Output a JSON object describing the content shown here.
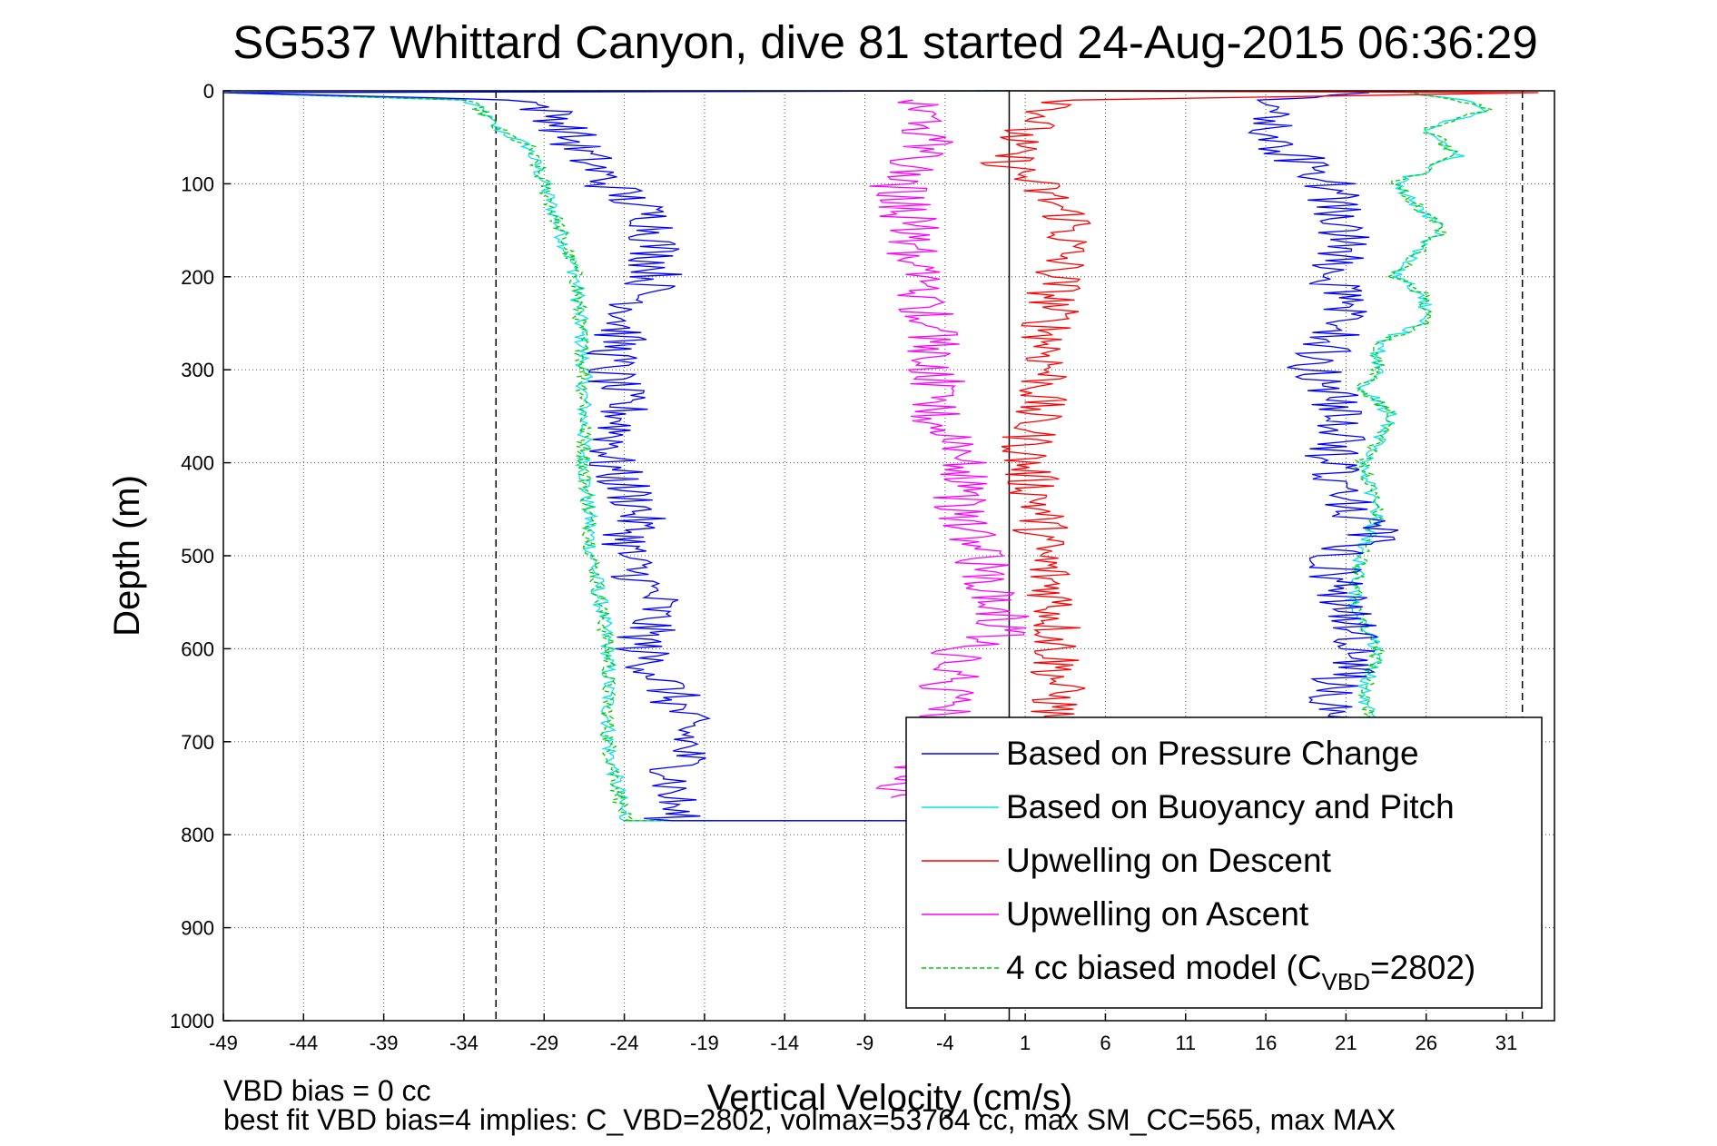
{
  "chart_data": {
    "type": "line",
    "title": "SG537 Whittard Canyon, dive 81 started 24-Aug-2015 06:36:29",
    "xlabel": "Vertical Velocity (cm/s)",
    "ylabel": "Depth (m)",
    "xlim": [
      -49,
      34
    ],
    "ylim": [
      0,
      1000
    ],
    "y_reversed": true,
    "grid": true,
    "x_ticks": [
      -49,
      -44,
      -39,
      -34,
      -29,
      -24,
      -19,
      -14,
      -9,
      -4,
      1,
      6,
      11,
      16,
      21,
      26,
      31
    ],
    "y_ticks": [
      0,
      100,
      200,
      300,
      400,
      500,
      600,
      700,
      800,
      900,
      1000
    ],
    "reference_lines": [
      {
        "axis": "x",
        "value": -32,
        "style": "dashed"
      },
      {
        "axis": "x",
        "value": 0,
        "style": "solid"
      },
      {
        "axis": "x",
        "value": 32,
        "style": "dashed"
      }
    ],
    "legend_position": "bottom-right",
    "series": [
      {
        "name": "Based on Pressure Change",
        "color": "#0000ff",
        "depth": [
          0,
          2,
          10,
          30,
          60,
          100,
          140,
          200,
          250,
          300,
          350,
          400,
          450,
          500,
          550,
          600,
          650,
          700,
          750,
          785,
          785,
          775,
          700,
          650,
          600,
          550,
          500,
          480,
          450,
          400,
          350,
          300,
          250,
          200,
          150,
          100,
          60,
          30,
          10,
          2,
          0
        ],
        "velocity": [
          0,
          -49,
          -30,
          -28,
          -27,
          -25,
          -22,
          -22,
          -24,
          -25,
          -24,
          -25,
          -23,
          -24,
          -22,
          -23,
          -21,
          -20,
          -21,
          -21,
          -5,
          -4,
          21,
          20,
          22,
          21,
          20,
          23,
          21,
          20,
          21,
          19,
          21,
          20,
          21,
          20,
          17,
          16,
          17,
          23,
          24
        ]
      },
      {
        "name": "Based on Buoyancy and Pitch",
        "color": "#00e5ee",
        "depth": [
          0,
          2,
          10,
          20,
          40,
          60,
          100,
          150,
          200,
          300,
          400,
          500,
          600,
          700,
          785,
          785,
          700,
          650,
          600,
          550,
          500,
          450,
          400,
          350,
          320,
          300,
          270,
          250,
          220,
          200,
          180,
          150,
          100,
          70,
          40,
          20,
          10,
          2,
          0
        ],
        "velocity": [
          0,
          -49,
          -34,
          -33,
          -32,
          -30,
          -29,
          -28,
          -27,
          -26.5,
          -26.5,
          -26,
          -25,
          -25,
          -24,
          -3,
          23,
          22,
          23,
          21.5,
          22,
          23,
          22,
          24,
          22,
          23,
          23,
          26,
          26,
          24,
          25,
          27,
          24,
          28,
          26,
          30,
          28,
          25,
          24
        ]
      },
      {
        "name": "Upwelling on Descent",
        "color": "#ff0000",
        "depth": [
          0,
          2,
          10,
          20,
          40,
          60,
          80,
          100,
          140,
          200,
          250,
          300,
          350,
          400,
          450,
          500,
          550,
          600,
          650,
          700,
          760
        ],
        "velocity": [
          0,
          33,
          4,
          3,
          1,
          0,
          0,
          1.5,
          4,
          3,
          2.5,
          2.5,
          1.5,
          1,
          2,
          2,
          3,
          3,
          3,
          2.5,
          3
        ]
      },
      {
        "name": "Upwelling on Ascent",
        "color": "#ff00ff",
        "depth": [
          760,
          700,
          650,
          600,
          580,
          550,
          500,
          450,
          400,
          350,
          300,
          250,
          200,
          150,
          100,
          50,
          10
        ],
        "velocity": [
          -7,
          -4,
          -4,
          -3,
          0,
          -1,
          -2,
          -3,
          -3,
          -4.5,
          -4.5,
          -5,
          -6,
          -6,
          -7,
          -5,
          -6
        ]
      },
      {
        "name": "4 cc biased model (C",
        "name_sub": "VBD",
        "name_tail": "=2802)",
        "color": "#00cc00",
        "style": "dashed",
        "depth": [
          0,
          2,
          10,
          20,
          40,
          60,
          100,
          150,
          200,
          300,
          400,
          500,
          600,
          700,
          785,
          785,
          700,
          650,
          600,
          550,
          500,
          450,
          400,
          350,
          320,
          300,
          270,
          250,
          220,
          200,
          180,
          150,
          100,
          70,
          40,
          20,
          10,
          2,
          0
        ],
        "velocity": [
          0,
          -49,
          -34,
          -33,
          -32,
          -30,
          -29,
          -28,
          -27,
          -26.5,
          -26.5,
          -26,
          -25,
          -25,
          -24,
          -3,
          23,
          22,
          23,
          21.5,
          22,
          23,
          22,
          24,
          22,
          23,
          23,
          26,
          26,
          24,
          25,
          27,
          24,
          28,
          26,
          30,
          28,
          25,
          24
        ]
      }
    ],
    "annotations": [
      "VBD bias = 0 cc",
      "best fit VBD bias=4 implies: C_VBD=2802, volmax=53764 cc, max SM_CC=565, max MAX"
    ]
  }
}
